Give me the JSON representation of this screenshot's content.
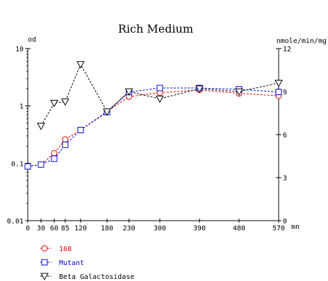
{
  "chart_data": {
    "type": "line",
    "title": "Rich Medium",
    "left_axis_label": "od",
    "right_axis_label": "nmole/min/mg",
    "x_unit_label": "mn",
    "x": [
      0,
      30,
      60,
      85,
      120,
      180,
      230,
      300,
      390,
      480,
      570
    ],
    "x_tick_labels": [
      "0",
      "30",
      "60",
      "85",
      "120",
      "180",
      "230",
      "300",
      "390",
      "480",
      "570"
    ],
    "xlim": [
      0,
      570
    ],
    "left_scale": "log",
    "ylim_left": [
      0.01,
      10
    ],
    "left_tick_labels": [
      "0.01",
      "0.1",
      "1",
      "10"
    ],
    "ylim_right": [
      0,
      12
    ],
    "right_tick_labels": [
      "0",
      "3",
      "6",
      "9",
      "12"
    ],
    "grid": false,
    "legend_position": "bottom-left",
    "series": [
      {
        "name": "168",
        "axis": "left",
        "color": "#dd0000",
        "marker": "circle",
        "points": [
          [
            0,
            0.088
          ],
          [
            30,
            0.095
          ],
          [
            60,
            0.15
          ],
          [
            85,
            0.26
          ],
          [
            120,
            0.38
          ],
          [
            180,
            0.8
          ],
          [
            230,
            1.45
          ],
          [
            300,
            1.7
          ],
          [
            390,
            1.9
          ],
          [
            480,
            1.65
          ],
          [
            570,
            1.5
          ]
        ]
      },
      {
        "name": "Mutant",
        "axis": "left",
        "color": "#0000cc",
        "marker": "square",
        "points": [
          [
            0,
            0.088
          ],
          [
            30,
            0.095
          ],
          [
            60,
            0.12
          ],
          [
            85,
            0.21
          ],
          [
            120,
            0.38
          ],
          [
            180,
            0.78
          ],
          [
            230,
            1.75
          ],
          [
            300,
            2.05
          ],
          [
            390,
            2.05
          ],
          [
            480,
            1.95
          ],
          [
            570,
            1.75
          ]
        ]
      },
      {
        "name": "Beta Galactosidase",
        "axis": "right",
        "color": "#000000",
        "marker": "triangle-down",
        "points": [
          [
            30,
            6.6
          ],
          [
            60,
            8.2
          ],
          [
            85,
            8.3
          ],
          [
            120,
            10.9
          ],
          [
            180,
            7.6
          ],
          [
            230,
            9.0
          ],
          [
            300,
            8.5
          ],
          [
            390,
            9.2
          ],
          [
            480,
            9.0
          ],
          [
            570,
            9.6
          ]
        ]
      }
    ]
  }
}
